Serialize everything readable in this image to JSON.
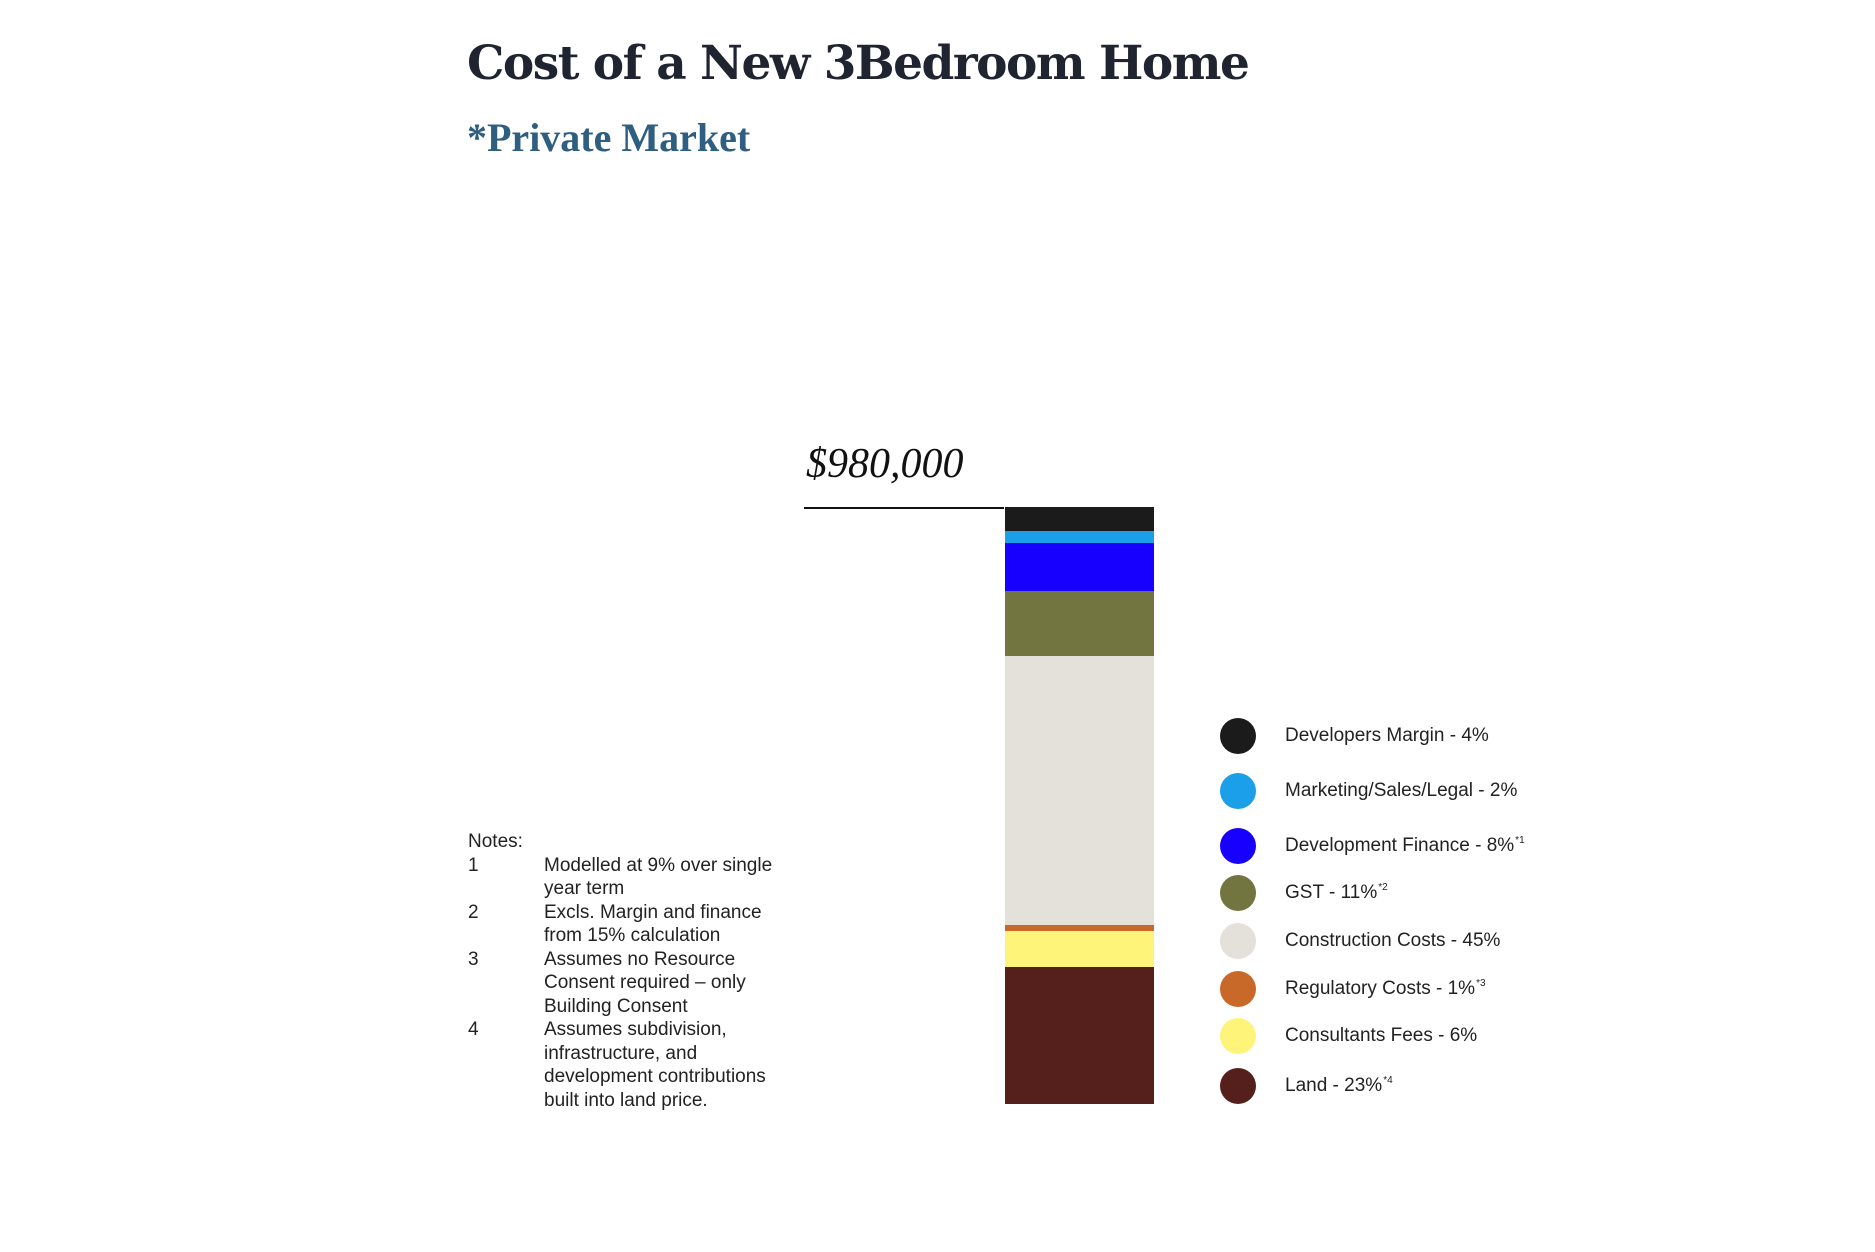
{
  "title": "Cost of a New 3Bedroom Home",
  "subtitle": "*Private Market",
  "chart_data": {
    "type": "bar",
    "stacked": true,
    "total_label": "$980,000",
    "series": [
      {
        "name": "Developers Margin - 4%",
        "value": 4,
        "footnote": "",
        "color": "#1b1b1b"
      },
      {
        "name": "Marketing/Sales/Legal - 2%",
        "value": 2,
        "footnote": "",
        "color": "#1a9fe8"
      },
      {
        "name": "Development Finance - 8%",
        "value": 8,
        "footnote": "*1",
        "color": "#1800ff"
      },
      {
        "name": "GST - 11%",
        "value": 11,
        "footnote": "*2",
        "color": "#737540"
      },
      {
        "name": "Construction Costs - 45%",
        "value": 45,
        "footnote": "",
        "color": "#e4e0da"
      },
      {
        "name": "Regulatory Costs - 1%",
        "value": 1,
        "footnote": "*3",
        "color": "#c8692a"
      },
      {
        "name": "Consultants Fees - 6%",
        "value": 6,
        "footnote": "",
        "color": "#fef47a"
      },
      {
        "name": "Land - 23%",
        "value": 23,
        "footnote": "*4",
        "color": "#55201c"
      }
    ]
  },
  "notes": {
    "heading": "Notes:",
    "items": [
      {
        "num": "1",
        "text": "Modelled at 9% over single year term"
      },
      {
        "num": "2",
        "text": "Excls. Margin and finance from 15% calculation"
      },
      {
        "num": "3",
        "text": "Assumes no Resource Consent required – only Building Consent"
      },
      {
        "num": "4",
        "text": "Assumes subdivision, infrastructure, and development contributions built into land price."
      }
    ]
  }
}
